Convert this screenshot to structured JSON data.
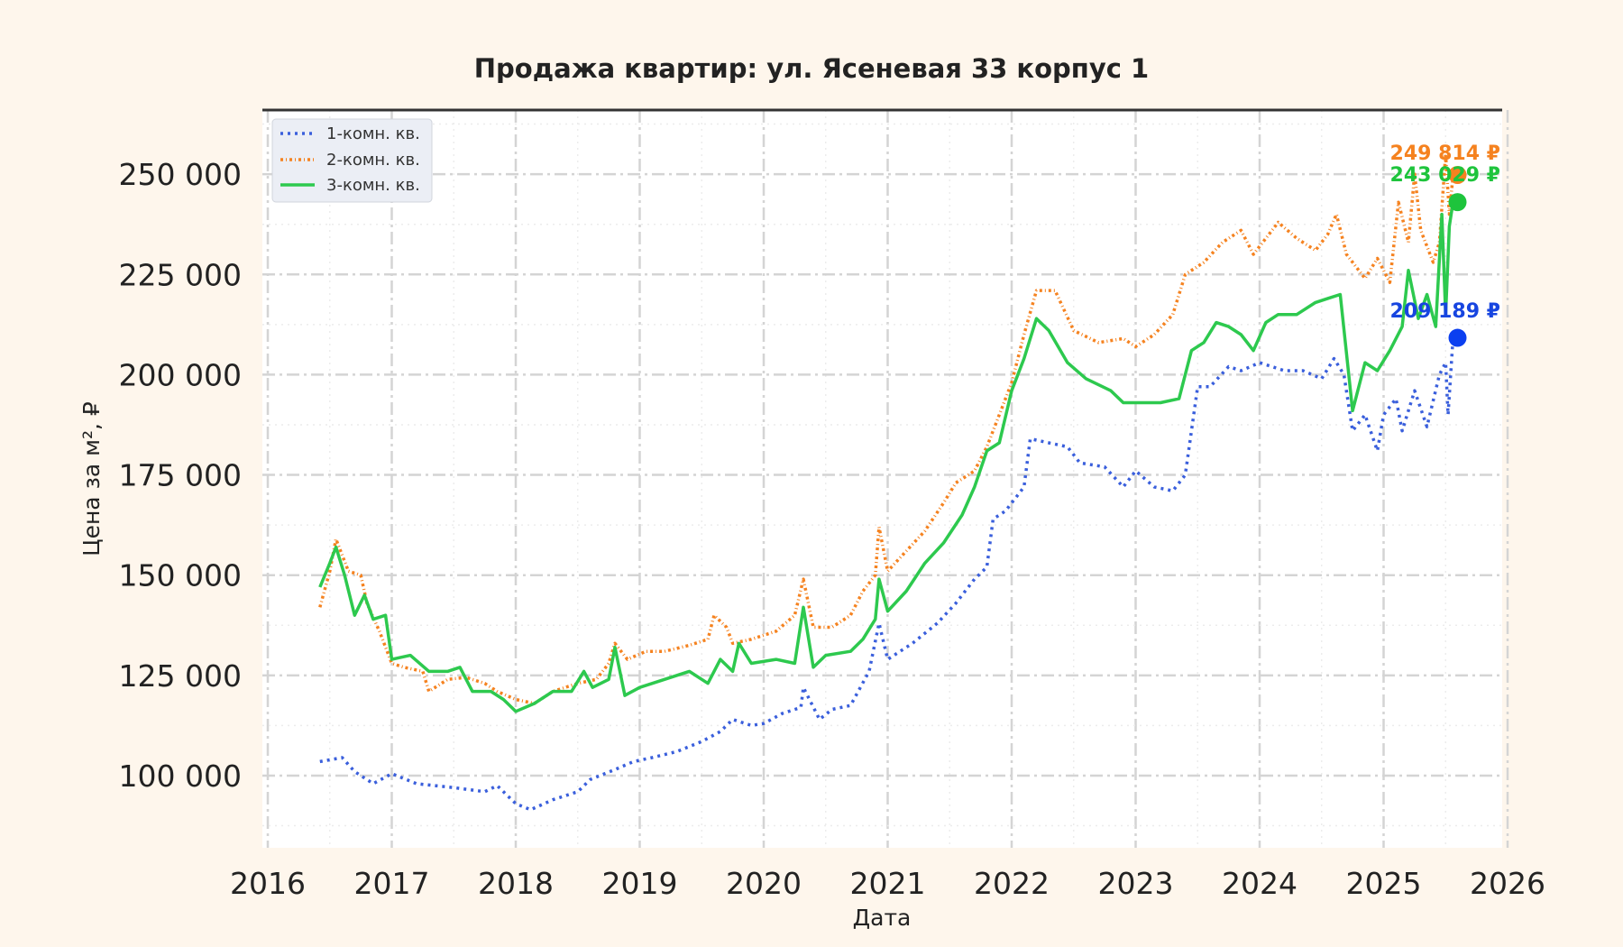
{
  "chart_data": {
    "type": "line",
    "title": "Продажа квартир: ул. Ясеневая 33 корпус 1",
    "xlabel": "Дата",
    "ylabel": "Цена за м², ₽",
    "xlim": [
      2016,
      2026
    ],
    "ylim": [
      82000,
      266000
    ],
    "x_ticks": [
      "2016",
      "2017",
      "2018",
      "2019",
      "2020",
      "2021",
      "2022",
      "2023",
      "2024",
      "2025",
      "2026"
    ],
    "y_ticks": [
      "100 000",
      "125 000",
      "150 000",
      "175 000",
      "200 000",
      "225 000",
      "250 000"
    ],
    "y_tick_values": [
      100000,
      125000,
      150000,
      175000,
      200000,
      225000,
      250000
    ],
    "grid": true,
    "legend_position": "top-left",
    "series": [
      {
        "name": "1-комн. кв.",
        "color": "#3a5fdc",
        "style": "dotted",
        "end_label": "209 189 ₽",
        "end_value": 209189,
        "end_marker_color": "#0b3ff0",
        "points": [
          [
            2016.42,
            103500
          ],
          [
            2016.6,
            104500
          ],
          [
            2016.7,
            101000
          ],
          [
            2016.85,
            98000
          ],
          [
            2017.0,
            100500
          ],
          [
            2017.2,
            98000
          ],
          [
            2017.5,
            97000
          ],
          [
            2017.75,
            96000
          ],
          [
            2017.85,
            97500
          ],
          [
            2018.0,
            93000
          ],
          [
            2018.12,
            91500
          ],
          [
            2018.3,
            94000
          ],
          [
            2018.5,
            96000
          ],
          [
            2018.6,
            99000
          ],
          [
            2018.8,
            101500
          ],
          [
            2018.95,
            103500
          ],
          [
            2019.1,
            104500
          ],
          [
            2019.3,
            106000
          ],
          [
            2019.5,
            108500
          ],
          [
            2019.65,
            111000
          ],
          [
            2019.75,
            114000
          ],
          [
            2019.9,
            112500
          ],
          [
            2020.0,
            113000
          ],
          [
            2020.15,
            115500
          ],
          [
            2020.3,
            117000
          ],
          [
            2020.32,
            122000
          ],
          [
            2020.45,
            114000
          ],
          [
            2020.55,
            116500
          ],
          [
            2020.7,
            117500
          ],
          [
            2020.85,
            126000
          ],
          [
            2020.93,
            138000
          ],
          [
            2021.0,
            129000
          ],
          [
            2021.2,
            133000
          ],
          [
            2021.4,
            138000
          ],
          [
            2021.55,
            143000
          ],
          [
            2021.7,
            149000
          ],
          [
            2021.8,
            152000
          ],
          [
            2021.85,
            164000
          ],
          [
            2021.95,
            166000
          ],
          [
            2022.1,
            172000
          ],
          [
            2022.15,
            184000
          ],
          [
            2022.3,
            183000
          ],
          [
            2022.45,
            182000
          ],
          [
            2022.55,
            178000
          ],
          [
            2022.75,
            177000
          ],
          [
            2022.9,
            172000
          ],
          [
            2023.0,
            176000
          ],
          [
            2023.15,
            172000
          ],
          [
            2023.3,
            171000
          ],
          [
            2023.4,
            175000
          ],
          [
            2023.5,
            197000
          ],
          [
            2023.6,
            197000
          ],
          [
            2023.75,
            202000
          ],
          [
            2023.85,
            201000
          ],
          [
            2024.0,
            203000
          ],
          [
            2024.2,
            201000
          ],
          [
            2024.35,
            201000
          ],
          [
            2024.5,
            199000
          ],
          [
            2024.6,
            204000
          ],
          [
            2024.68,
            200000
          ],
          [
            2024.75,
            186000
          ],
          [
            2024.85,
            190000
          ],
          [
            2024.95,
            181000
          ],
          [
            2025.0,
            190000
          ],
          [
            2025.1,
            194000
          ],
          [
            2025.15,
            186000
          ],
          [
            2025.25,
            196000
          ],
          [
            2025.35,
            187000
          ],
          [
            2025.45,
            200000
          ],
          [
            2025.5,
            203000
          ],
          [
            2025.52,
            190000
          ],
          [
            2025.56,
            209189
          ]
        ]
      },
      {
        "name": "2-комн. кв.",
        "color": "#f5821f",
        "style": "dash-dot",
        "end_label": "249 814 ₽",
        "end_value": 249814,
        "end_marker_color": "#f5821f",
        "points": [
          [
            2016.42,
            142000
          ],
          [
            2016.5,
            151000
          ],
          [
            2016.55,
            159000
          ],
          [
            2016.65,
            151000
          ],
          [
            2016.75,
            150000
          ],
          [
            2016.8,
            143000
          ],
          [
            2016.9,
            136000
          ],
          [
            2017.0,
            128000
          ],
          [
            2017.1,
            127000
          ],
          [
            2017.25,
            126000
          ],
          [
            2017.3,
            121000
          ],
          [
            2017.45,
            124000
          ],
          [
            2017.6,
            124500
          ],
          [
            2017.75,
            123000
          ],
          [
            2017.85,
            121000
          ],
          [
            2018.0,
            119000
          ],
          [
            2018.15,
            118000
          ],
          [
            2018.3,
            121000
          ],
          [
            2018.5,
            123000
          ],
          [
            2018.65,
            124000
          ],
          [
            2018.75,
            128000
          ],
          [
            2018.8,
            133000
          ],
          [
            2018.9,
            129000
          ],
          [
            2019.05,
            131000
          ],
          [
            2019.2,
            131000
          ],
          [
            2019.4,
            132500
          ],
          [
            2019.55,
            134000
          ],
          [
            2019.6,
            140000
          ],
          [
            2019.7,
            137000
          ],
          [
            2019.75,
            133000
          ],
          [
            2019.9,
            134000
          ],
          [
            2020.1,
            136000
          ],
          [
            2020.25,
            140000
          ],
          [
            2020.32,
            149000
          ],
          [
            2020.4,
            137000
          ],
          [
            2020.55,
            137000
          ],
          [
            2020.7,
            140000
          ],
          [
            2020.8,
            146000
          ],
          [
            2020.9,
            150000
          ],
          [
            2020.93,
            162000
          ],
          [
            2021.0,
            151000
          ],
          [
            2021.15,
            156000
          ],
          [
            2021.3,
            161000
          ],
          [
            2021.45,
            168000
          ],
          [
            2021.55,
            173000
          ],
          [
            2021.7,
            176000
          ],
          [
            2021.8,
            182000
          ],
          [
            2021.9,
            190000
          ],
          [
            2022.0,
            198000
          ],
          [
            2022.1,
            210000
          ],
          [
            2022.2,
            221000
          ],
          [
            2022.35,
            221000
          ],
          [
            2022.5,
            211000
          ],
          [
            2022.7,
            208000
          ],
          [
            2022.9,
            209000
          ],
          [
            2023.0,
            207000
          ],
          [
            2023.15,
            210000
          ],
          [
            2023.3,
            215000
          ],
          [
            2023.4,
            225000
          ],
          [
            2023.55,
            228000
          ],
          [
            2023.7,
            233000
          ],
          [
            2023.85,
            236000
          ],
          [
            2023.95,
            230000
          ],
          [
            2024.05,
            234000
          ],
          [
            2024.15,
            238000
          ],
          [
            2024.3,
            234000
          ],
          [
            2024.45,
            231000
          ],
          [
            2024.55,
            235000
          ],
          [
            2024.62,
            240000
          ],
          [
            2024.7,
            230000
          ],
          [
            2024.85,
            224000
          ],
          [
            2024.95,
            229000
          ],
          [
            2025.05,
            223000
          ],
          [
            2025.12,
            243000
          ],
          [
            2025.2,
            233000
          ],
          [
            2025.25,
            250000
          ],
          [
            2025.3,
            236000
          ],
          [
            2025.4,
            228000
          ],
          [
            2025.45,
            233000
          ],
          [
            2025.5,
            255000
          ],
          [
            2025.53,
            240000
          ],
          [
            2025.56,
            249814
          ]
        ]
      },
      {
        "name": "3-комн. кв.",
        "color": "#2dc94e",
        "style": "solid",
        "end_label": "243 029 ₽",
        "end_value": 243029,
        "end_marker_color": "#1ec43c",
        "points": [
          [
            2016.42,
            147000
          ],
          [
            2016.5,
            153000
          ],
          [
            2016.55,
            157000
          ],
          [
            2016.62,
            150000
          ],
          [
            2016.7,
            140000
          ],
          [
            2016.78,
            145000
          ],
          [
            2016.85,
            139000
          ],
          [
            2016.95,
            140000
          ],
          [
            2017.0,
            129000
          ],
          [
            2017.15,
            130000
          ],
          [
            2017.3,
            126000
          ],
          [
            2017.45,
            126000
          ],
          [
            2017.55,
            127000
          ],
          [
            2017.65,
            121000
          ],
          [
            2017.8,
            121000
          ],
          [
            2017.9,
            119000
          ],
          [
            2018.0,
            116000
          ],
          [
            2018.15,
            118000
          ],
          [
            2018.3,
            121000
          ],
          [
            2018.45,
            121000
          ],
          [
            2018.55,
            126000
          ],
          [
            2018.62,
            122000
          ],
          [
            2018.75,
            124000
          ],
          [
            2018.8,
            132000
          ],
          [
            2018.88,
            120000
          ],
          [
            2019.0,
            122000
          ],
          [
            2019.2,
            124000
          ],
          [
            2019.4,
            126000
          ],
          [
            2019.55,
            123000
          ],
          [
            2019.65,
            129000
          ],
          [
            2019.75,
            126000
          ],
          [
            2019.8,
            133000
          ],
          [
            2019.9,
            128000
          ],
          [
            2020.1,
            129000
          ],
          [
            2020.25,
            128000
          ],
          [
            2020.32,
            142000
          ],
          [
            2020.4,
            127000
          ],
          [
            2020.5,
            130000
          ],
          [
            2020.7,
            131000
          ],
          [
            2020.8,
            134000
          ],
          [
            2020.9,
            139000
          ],
          [
            2020.93,
            149000
          ],
          [
            2021.0,
            141000
          ],
          [
            2021.15,
            146000
          ],
          [
            2021.3,
            153000
          ],
          [
            2021.45,
            158000
          ],
          [
            2021.6,
            165000
          ],
          [
            2021.7,
            172000
          ],
          [
            2021.8,
            181000
          ],
          [
            2021.9,
            183000
          ],
          [
            2022.0,
            196000
          ],
          [
            2022.1,
            204000
          ],
          [
            2022.2,
            214000
          ],
          [
            2022.3,
            211000
          ],
          [
            2022.45,
            203000
          ],
          [
            2022.6,
            199000
          ],
          [
            2022.8,
            196000
          ],
          [
            2022.9,
            193000
          ],
          [
            2023.05,
            193000
          ],
          [
            2023.2,
            193000
          ],
          [
            2023.35,
            194000
          ],
          [
            2023.45,
            206000
          ],
          [
            2023.55,
            208000
          ],
          [
            2023.65,
            213000
          ],
          [
            2023.75,
            212000
          ],
          [
            2023.85,
            210000
          ],
          [
            2023.95,
            206000
          ],
          [
            2024.05,
            213000
          ],
          [
            2024.15,
            215000
          ],
          [
            2024.3,
            215000
          ],
          [
            2024.45,
            218000
          ],
          [
            2024.55,
            219000
          ],
          [
            2024.65,
            220000
          ],
          [
            2024.75,
            191000
          ],
          [
            2024.85,
            203000
          ],
          [
            2024.95,
            201000
          ],
          [
            2025.05,
            206000
          ],
          [
            2025.15,
            212000
          ],
          [
            2025.2,
            226000
          ],
          [
            2025.28,
            214000
          ],
          [
            2025.35,
            220000
          ],
          [
            2025.42,
            212000
          ],
          [
            2025.47,
            240000
          ],
          [
            2025.5,
            215000
          ],
          [
            2025.53,
            237000
          ],
          [
            2025.56,
            243029
          ]
        ]
      }
    ]
  }
}
